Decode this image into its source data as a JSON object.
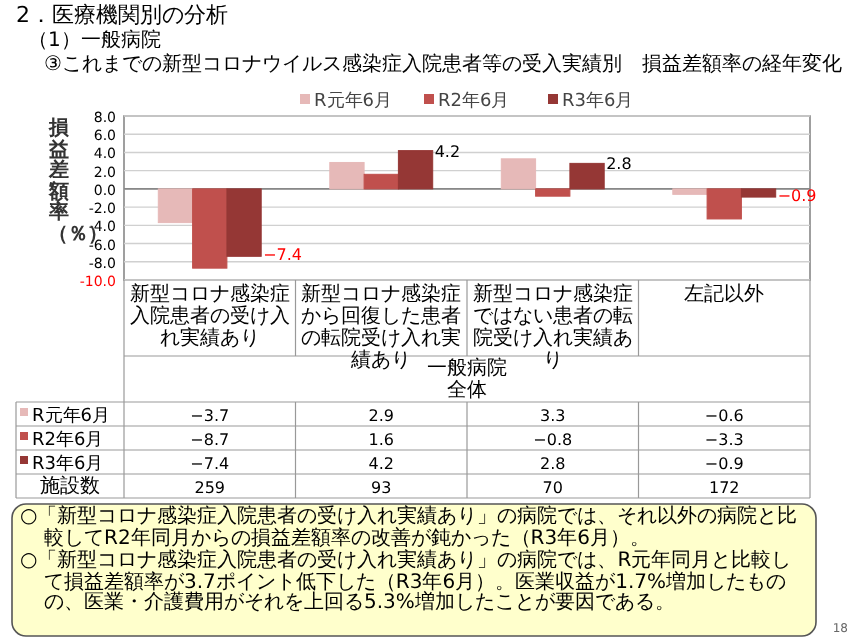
{
  "chart_data": {
    "type": "bar",
    "title": "③これまでの新型コロナウイルス感染症入院患者等の受入実績別　損益差額率の経年変化",
    "ylabel": "損益差額率（％）",
    "categories": [
      "新型コロナ感染症入院患者の受け入れ実績あり",
      "新型コロナ感染症から回復した患者の転院受け入れ実績あり",
      "新型コロナ感染症ではない患者の転院受け入れ実績あり",
      "左記以外"
    ],
    "series": [
      {
        "name": "R元年6月",
        "color": "#e6b9b8",
        "values": [
          -3.7,
          2.9,
          3.3,
          -0.6
        ]
      },
      {
        "name": "R2年6月",
        "color": "#c0504d",
        "values": [
          -8.7,
          1.6,
          -0.8,
          -3.3
        ]
      },
      {
        "name": "R3年6月",
        "color": "#953735",
        "values": [
          -7.4,
          4.2,
          2.8,
          -0.9
        ],
        "value_labels": [
          "−7.4",
          "4.2",
          "2.8",
          "−0.9"
        ]
      }
    ],
    "ylim": [
      -10,
      8
    ],
    "yticks": [
      {
        "value": -10,
        "label": "-10.0"
      },
      {
        "value": -8,
        "label": "-8.0"
      },
      {
        "value": -6,
        "label": "-6.0"
      },
      {
        "value": -4,
        "label": "-4.0"
      },
      {
        "value": -2,
        "label": "-2.0"
      },
      {
        "value": 0,
        "label": "0.0"
      },
      {
        "value": 2,
        "label": "2.0"
      },
      {
        "value": 4,
        "label": "4.0"
      },
      {
        "value": 6,
        "label": "6.0"
      },
      {
        "value": 8,
        "label": "8.0"
      }
    ],
    "grid": "y",
    "legend": "top",
    "data_labels": true,
    "annotations": [
      "2．医療機関別の分析",
      "（1）一般病院",
      "一般病院",
      "全体",
      "施設数",
      "259",
      "93",
      "70",
      "172",
      "○「新型コロナ感染症入院患者の受け入れ実績あり」の病院では、それ以外の病院と比較してR2年同月からの損益差額率の改善が鈍かった（R3年6月）。",
      "○「新型コロナ感染症入院患者の受け入れ実績あり」の病院では、R元年同月と比較して損益差額率が3.7ポイント低下した（R3年6月）。医業収益が1.7%増加したものの、医業・介護費用がそれを上回る5.3%増加したことが要因である。",
      "18"
    ]
  }
}
